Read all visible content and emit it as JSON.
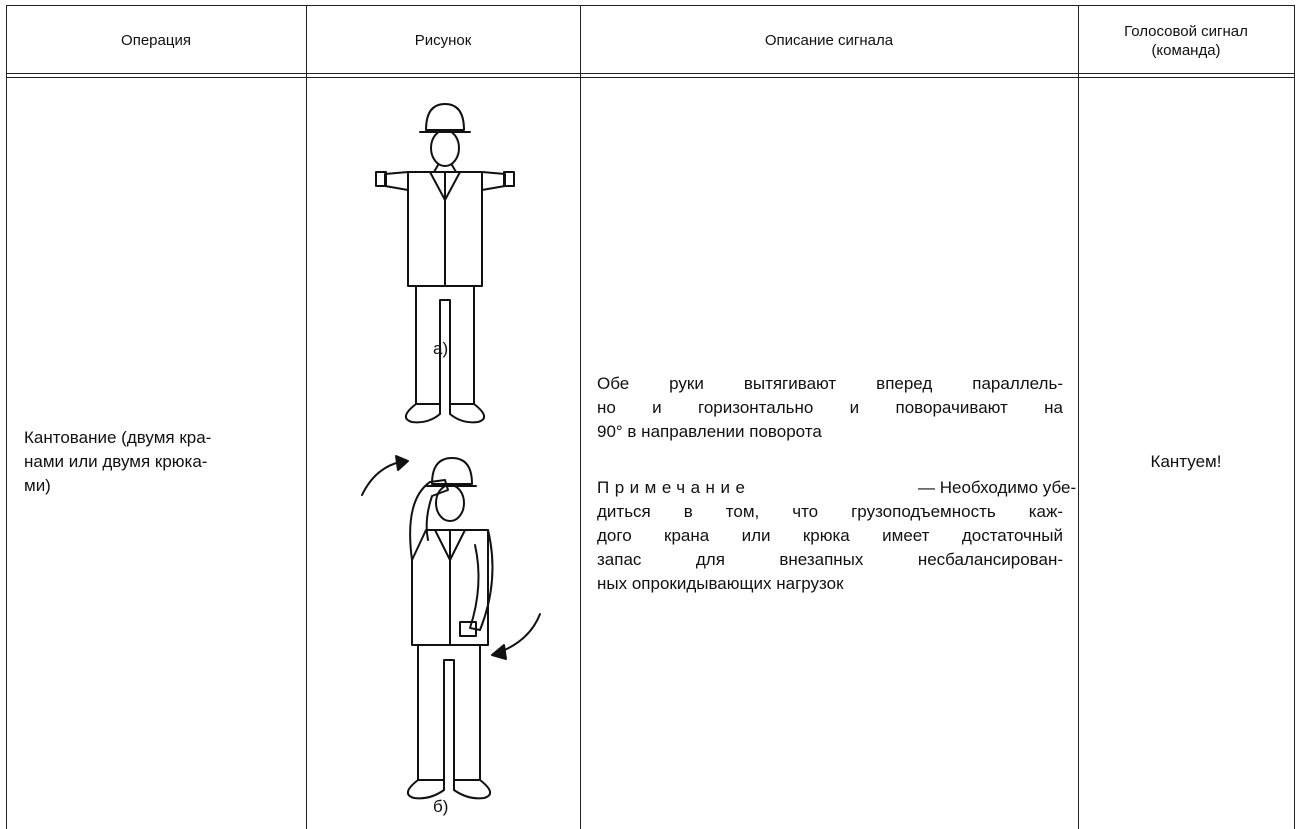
{
  "table": {
    "header": [
      "Операция",
      "Рисунок",
      "Описание сигнала",
      [
        "Голосовой сигнал",
        "(команда)"
      ]
    ],
    "row": {
      "operation": [
        "Кантование (двумя кра-",
        "нами или двумя крюка-",
        "ми)"
      ],
      "figure_labels": [
        "а)",
        "б)"
      ],
      "description": [
        "Обе руки вытягивают вперед параллель-",
        "но и горизонтально и поворачивают на",
        "90° в направлении поворота"
      ],
      "note_label": "Примечание",
      "note": [
        "— Необходимо убе-",
        "диться в том, что грузоподъемность каж-",
        "дого крана или крюка имеет достаточный",
        "запас для внезапных несбалансирован-",
        "ных опрокидывающих нагрузок"
      ],
      "command": "Кантуем!"
    }
  }
}
